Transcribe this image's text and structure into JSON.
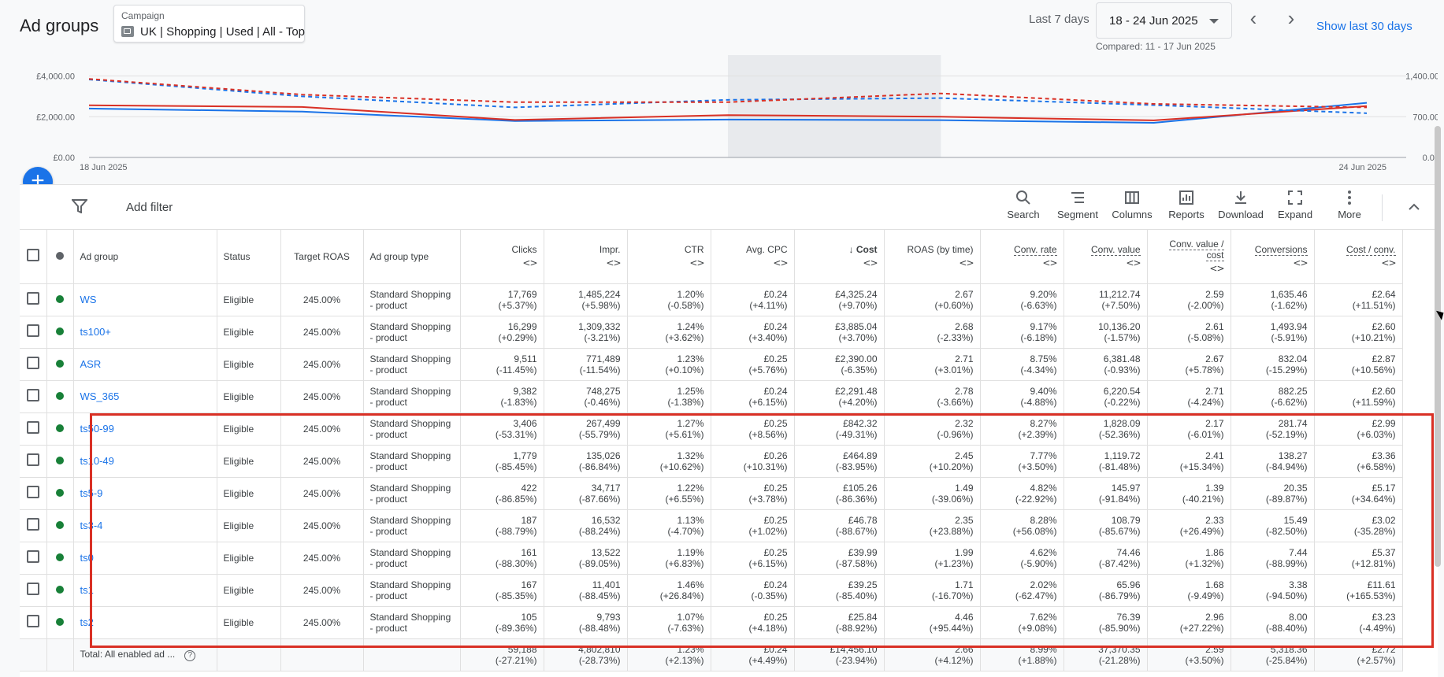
{
  "page_title": "Ad groups",
  "campaign": {
    "label": "Campaign",
    "name": "UK | Shopping | Used | All - Top"
  },
  "date": {
    "range_label": "Last 7 days",
    "value": "18 - 24 Jun 2025",
    "compared": "Compared: 11 - 17 Jun 2025",
    "show_30": "Show last 30 days"
  },
  "chart_data": {
    "type": "line",
    "x_labels": [
      "18 Jun 2025",
      "24 Jun 2025"
    ],
    "x": [
      "18 Jun",
      "19 Jun",
      "20 Jun",
      "21 Jun",
      "22 Jun",
      "23 Jun",
      "24 Jun"
    ],
    "left_axis": {
      "ticks": [
        "£4,000.00",
        "£2,000.00",
        "£0.00"
      ],
      "range": [
        0,
        4600
      ]
    },
    "right_axis": {
      "ticks": [
        "1,400.00",
        "700.00",
        "0.00"
      ],
      "range": [
        0,
        1610
      ]
    },
    "series": [
      {
        "color": "#1a73e8",
        "dashed": false,
        "axis": "left",
        "values": [
          2400,
          2250,
          1790,
          1860,
          1830,
          1700,
          2680
        ]
      },
      {
        "color": "#d93025",
        "dashed": false,
        "axis": "left",
        "values": [
          2560,
          2480,
          1840,
          2080,
          2000,
          1820,
          2520
        ]
      },
      {
        "color": "#1a73e8",
        "dashed": true,
        "axis": "right",
        "values": [
          1340,
          1050,
          860,
          990,
          1020,
          900,
          760
        ]
      },
      {
        "color": "#d93025",
        "dashed": true,
        "axis": "right",
        "values": [
          1350,
          1080,
          950,
          950,
          1100,
          920,
          860
        ]
      }
    ],
    "highlight_range": [
      "21 Jun",
      "22 Jun"
    ]
  },
  "toolbar": {
    "add_filter": "Add filter",
    "tools": [
      "Search",
      "Segment",
      "Columns",
      "Reports",
      "Download",
      "Expand",
      "More"
    ]
  },
  "columns": {
    "ad_group": "Ad group",
    "status": "Status",
    "target_roas": "Target ROAS",
    "type": "Ad group type",
    "clicks": "Clicks",
    "impr": "Impr.",
    "ctr": "CTR",
    "avg_cpc": "Avg. CPC",
    "cost": "Cost",
    "roas": "ROAS (by time)",
    "conv_rate": "Conv. rate",
    "conv_value": "Conv. value",
    "conv_value_cost": "Conv. value / cost",
    "conversions": "Conversions",
    "cost_conv": "Cost / conv."
  },
  "sort_glyph": "<>",
  "sort_down": "↓",
  "rows": [
    {
      "name": "WS",
      "status": "Eligible",
      "troas": "245.00%",
      "type1": "Standard Shopping",
      "type2": "- product",
      "clicks": [
        "17,769",
        "(+5.37%)"
      ],
      "impr": [
        "1,485,224",
        "(+5.98%)"
      ],
      "ctr": [
        "1.20%",
        "(-0.58%)"
      ],
      "cpc": [
        "£0.24",
        "(+4.11%)"
      ],
      "cost": [
        "£4,325.24",
        "(+9.70%)"
      ],
      "roas": [
        "2.67",
        "(+0.60%)"
      ],
      "cr": [
        "9.20%",
        "(-6.63%)"
      ],
      "cv": [
        "11,212.74",
        "(+7.50%)"
      ],
      "cvc": [
        "2.59",
        "(-2.00%)"
      ],
      "conv": [
        "1,635.46",
        "(-1.62%)"
      ],
      "cpa": [
        "£2.64",
        "(+11.51%)"
      ]
    },
    {
      "name": "ts100+",
      "status": "Eligible",
      "troas": "245.00%",
      "type1": "Standard Shopping",
      "type2": "- product",
      "clicks": [
        "16,299",
        "(+0.29%)"
      ],
      "impr": [
        "1,309,332",
        "(-3.21%)"
      ],
      "ctr": [
        "1.24%",
        "(+3.62%)"
      ],
      "cpc": [
        "£0.24",
        "(+3.40%)"
      ],
      "cost": [
        "£3,885.04",
        "(+3.70%)"
      ],
      "roas": [
        "2.68",
        "(-2.33%)"
      ],
      "cr": [
        "9.17%",
        "(-6.18%)"
      ],
      "cv": [
        "10,136.20",
        "(-1.57%)"
      ],
      "cvc": [
        "2.61",
        "(-5.08%)"
      ],
      "conv": [
        "1,493.94",
        "(-5.91%)"
      ],
      "cpa": [
        "£2.60",
        "(+10.21%)"
      ]
    },
    {
      "name": "ASR",
      "status": "Eligible",
      "troas": "245.00%",
      "type1": "Standard Shopping",
      "type2": "- product",
      "clicks": [
        "9,511",
        "(-11.45%)"
      ],
      "impr": [
        "771,489",
        "(-11.54%)"
      ],
      "ctr": [
        "1.23%",
        "(+0.10%)"
      ],
      "cpc": [
        "£0.25",
        "(+5.76%)"
      ],
      "cost": [
        "£2,390.00",
        "(-6.35%)"
      ],
      "roas": [
        "2.71",
        "(+3.01%)"
      ],
      "cr": [
        "8.75%",
        "(-4.34%)"
      ],
      "cv": [
        "6,381.48",
        "(-0.93%)"
      ],
      "cvc": [
        "2.67",
        "(+5.78%)"
      ],
      "conv": [
        "832.04",
        "(-15.29%)"
      ],
      "cpa": [
        "£2.87",
        "(+10.56%)"
      ]
    },
    {
      "name": "WS_365",
      "status": "Eligible",
      "troas": "245.00%",
      "type1": "Standard Shopping",
      "type2": "- product",
      "clicks": [
        "9,382",
        "(-1.83%)"
      ],
      "impr": [
        "748,275",
        "(-0.46%)"
      ],
      "ctr": [
        "1.25%",
        "(-1.38%)"
      ],
      "cpc": [
        "£0.24",
        "(+6.15%)"
      ],
      "cost": [
        "£2,291.48",
        "(+4.20%)"
      ],
      "roas": [
        "2.78",
        "(-3.66%)"
      ],
      "cr": [
        "9.40%",
        "(-4.88%)"
      ],
      "cv": [
        "6,220.54",
        "(-0.22%)"
      ],
      "cvc": [
        "2.71",
        "(-4.24%)"
      ],
      "conv": [
        "882.25",
        "(-6.62%)"
      ],
      "cpa": [
        "£2.60",
        "(+11.59%)"
      ]
    },
    {
      "name": "ts50-99",
      "status": "Eligible",
      "troas": "245.00%",
      "type1": "Standard Shopping",
      "type2": "- product",
      "clicks": [
        "3,406",
        "(-53.31%)"
      ],
      "impr": [
        "267,499",
        "(-55.79%)"
      ],
      "ctr": [
        "1.27%",
        "(+5.61%)"
      ],
      "cpc": [
        "£0.25",
        "(+8.56%)"
      ],
      "cost": [
        "£842.32",
        "(-49.31%)"
      ],
      "roas": [
        "2.32",
        "(-0.96%)"
      ],
      "cr": [
        "8.27%",
        "(+2.39%)"
      ],
      "cv": [
        "1,828.09",
        "(-52.36%)"
      ],
      "cvc": [
        "2.17",
        "(-6.01%)"
      ],
      "conv": [
        "281.74",
        "(-52.19%)"
      ],
      "cpa": [
        "£2.99",
        "(+6.03%)"
      ]
    },
    {
      "name": "ts10-49",
      "status": "Eligible",
      "troas": "245.00%",
      "type1": "Standard Shopping",
      "type2": "- product",
      "clicks": [
        "1,779",
        "(-85.45%)"
      ],
      "impr": [
        "135,026",
        "(-86.84%)"
      ],
      "ctr": [
        "1.32%",
        "(+10.62%)"
      ],
      "cpc": [
        "£0.26",
        "(+10.31%)"
      ],
      "cost": [
        "£464.89",
        "(-83.95%)"
      ],
      "roas": [
        "2.45",
        "(+10.20%)"
      ],
      "cr": [
        "7.77%",
        "(+3.50%)"
      ],
      "cv": [
        "1,119.72",
        "(-81.48%)"
      ],
      "cvc": [
        "2.41",
        "(+15.34%)"
      ],
      "conv": [
        "138.27",
        "(-84.94%)"
      ],
      "cpa": [
        "£3.36",
        "(+6.58%)"
      ]
    },
    {
      "name": "ts5-9",
      "status": "Eligible",
      "troas": "245.00%",
      "type1": "Standard Shopping",
      "type2": "- product",
      "clicks": [
        "422",
        "(-86.85%)"
      ],
      "impr": [
        "34,717",
        "(-87.66%)"
      ],
      "ctr": [
        "1.22%",
        "(+6.55%)"
      ],
      "cpc": [
        "£0.25",
        "(+3.78%)"
      ],
      "cost": [
        "£105.26",
        "(-86.36%)"
      ],
      "roas": [
        "1.49",
        "(-39.06%)"
      ],
      "cr": [
        "4.82%",
        "(-22.92%)"
      ],
      "cv": [
        "145.97",
        "(-91.84%)"
      ],
      "cvc": [
        "1.39",
        "(-40.21%)"
      ],
      "conv": [
        "20.35",
        "(-89.87%)"
      ],
      "cpa": [
        "£5.17",
        "(+34.64%)"
      ]
    },
    {
      "name": "ts3-4",
      "status": "Eligible",
      "troas": "245.00%",
      "type1": "Standard Shopping",
      "type2": "- product",
      "clicks": [
        "187",
        "(-88.79%)"
      ],
      "impr": [
        "16,532",
        "(-88.24%)"
      ],
      "ctr": [
        "1.13%",
        "(-4.70%)"
      ],
      "cpc": [
        "£0.25",
        "(+1.02%)"
      ],
      "cost": [
        "£46.78",
        "(-88.67%)"
      ],
      "roas": [
        "2.35",
        "(+23.88%)"
      ],
      "cr": [
        "8.28%",
        "(+56.08%)"
      ],
      "cv": [
        "108.79",
        "(-85.67%)"
      ],
      "cvc": [
        "2.33",
        "(+26.49%)"
      ],
      "conv": [
        "15.49",
        "(-82.50%)"
      ],
      "cpa": [
        "£3.02",
        "(-35.28%)"
      ]
    },
    {
      "name": "ts0",
      "status": "Eligible",
      "troas": "245.00%",
      "type1": "Standard Shopping",
      "type2": "- product",
      "clicks": [
        "161",
        "(-88.30%)"
      ],
      "impr": [
        "13,522",
        "(-89.05%)"
      ],
      "ctr": [
        "1.19%",
        "(+6.83%)"
      ],
      "cpc": [
        "£0.25",
        "(+6.15%)"
      ],
      "cost": [
        "£39.99",
        "(-87.58%)"
      ],
      "roas": [
        "1.99",
        "(+1.23%)"
      ],
      "cr": [
        "4.62%",
        "(-5.90%)"
      ],
      "cv": [
        "74.46",
        "(-87.42%)"
      ],
      "cvc": [
        "1.86",
        "(+1.32%)"
      ],
      "conv": [
        "7.44",
        "(-88.99%)"
      ],
      "cpa": [
        "£5.37",
        "(+12.81%)"
      ]
    },
    {
      "name": "ts1",
      "status": "Eligible",
      "troas": "245.00%",
      "type1": "Standard Shopping",
      "type2": "- product",
      "clicks": [
        "167",
        "(-85.35%)"
      ],
      "impr": [
        "11,401",
        "(-88.45%)"
      ],
      "ctr": [
        "1.46%",
        "(+26.84%)"
      ],
      "cpc": [
        "£0.24",
        "(-0.35%)"
      ],
      "cost": [
        "£39.25",
        "(-85.40%)"
      ],
      "roas": [
        "1.71",
        "(-16.70%)"
      ],
      "cr": [
        "2.02%",
        "(-62.47%)"
      ],
      "cv": [
        "65.96",
        "(-86.79%)"
      ],
      "cvc": [
        "1.68",
        "(-9.49%)"
      ],
      "conv": [
        "3.38",
        "(-94.50%)"
      ],
      "cpa": [
        "£11.61",
        "(+165.53%)"
      ]
    },
    {
      "name": "ts2",
      "status": "Eligible",
      "troas": "245.00%",
      "type1": "Standard Shopping",
      "type2": "- product",
      "clicks": [
        "105",
        "(-89.36%)"
      ],
      "impr": [
        "9,793",
        "(-88.48%)"
      ],
      "ctr": [
        "1.07%",
        "(-7.63%)"
      ],
      "cpc": [
        "£0.25",
        "(+4.18%)"
      ],
      "cost": [
        "£25.84",
        "(-88.92%)"
      ],
      "roas": [
        "4.46",
        "(+95.44%)"
      ],
      "cr": [
        "7.62%",
        "(+9.08%)"
      ],
      "cv": [
        "76.39",
        "(-85.90%)"
      ],
      "cvc": [
        "2.96",
        "(+27.22%)"
      ],
      "conv": [
        "8.00",
        "(-88.40%)"
      ],
      "cpa": [
        "£3.23",
        "(-4.49%)"
      ]
    }
  ],
  "total": {
    "label": "Total: All enabled ad ...",
    "help": "?",
    "clicks": [
      "59,188",
      "(-27.21%)"
    ],
    "impr": [
      "4,802,810",
      "(-28.73%)"
    ],
    "ctr": [
      "1.23%",
      "(+2.13%)"
    ],
    "cpc": [
      "£0.24",
      "(+4.49%)"
    ],
    "cost": [
      "£14,456.10",
      "(-23.94%)"
    ],
    "roas": [
      "2.66",
      "(+4.12%)"
    ],
    "cr": [
      "8.99%",
      "(+1.88%)"
    ],
    "cv": [
      "37,370.35",
      "(-21.28%)"
    ],
    "cvc": [
      "2.59",
      "(+3.50%)"
    ],
    "conv": [
      "5,318.36",
      "(-25.84%)"
    ],
    "cpa": [
      "£2.72",
      "(+2.57%)"
    ]
  }
}
